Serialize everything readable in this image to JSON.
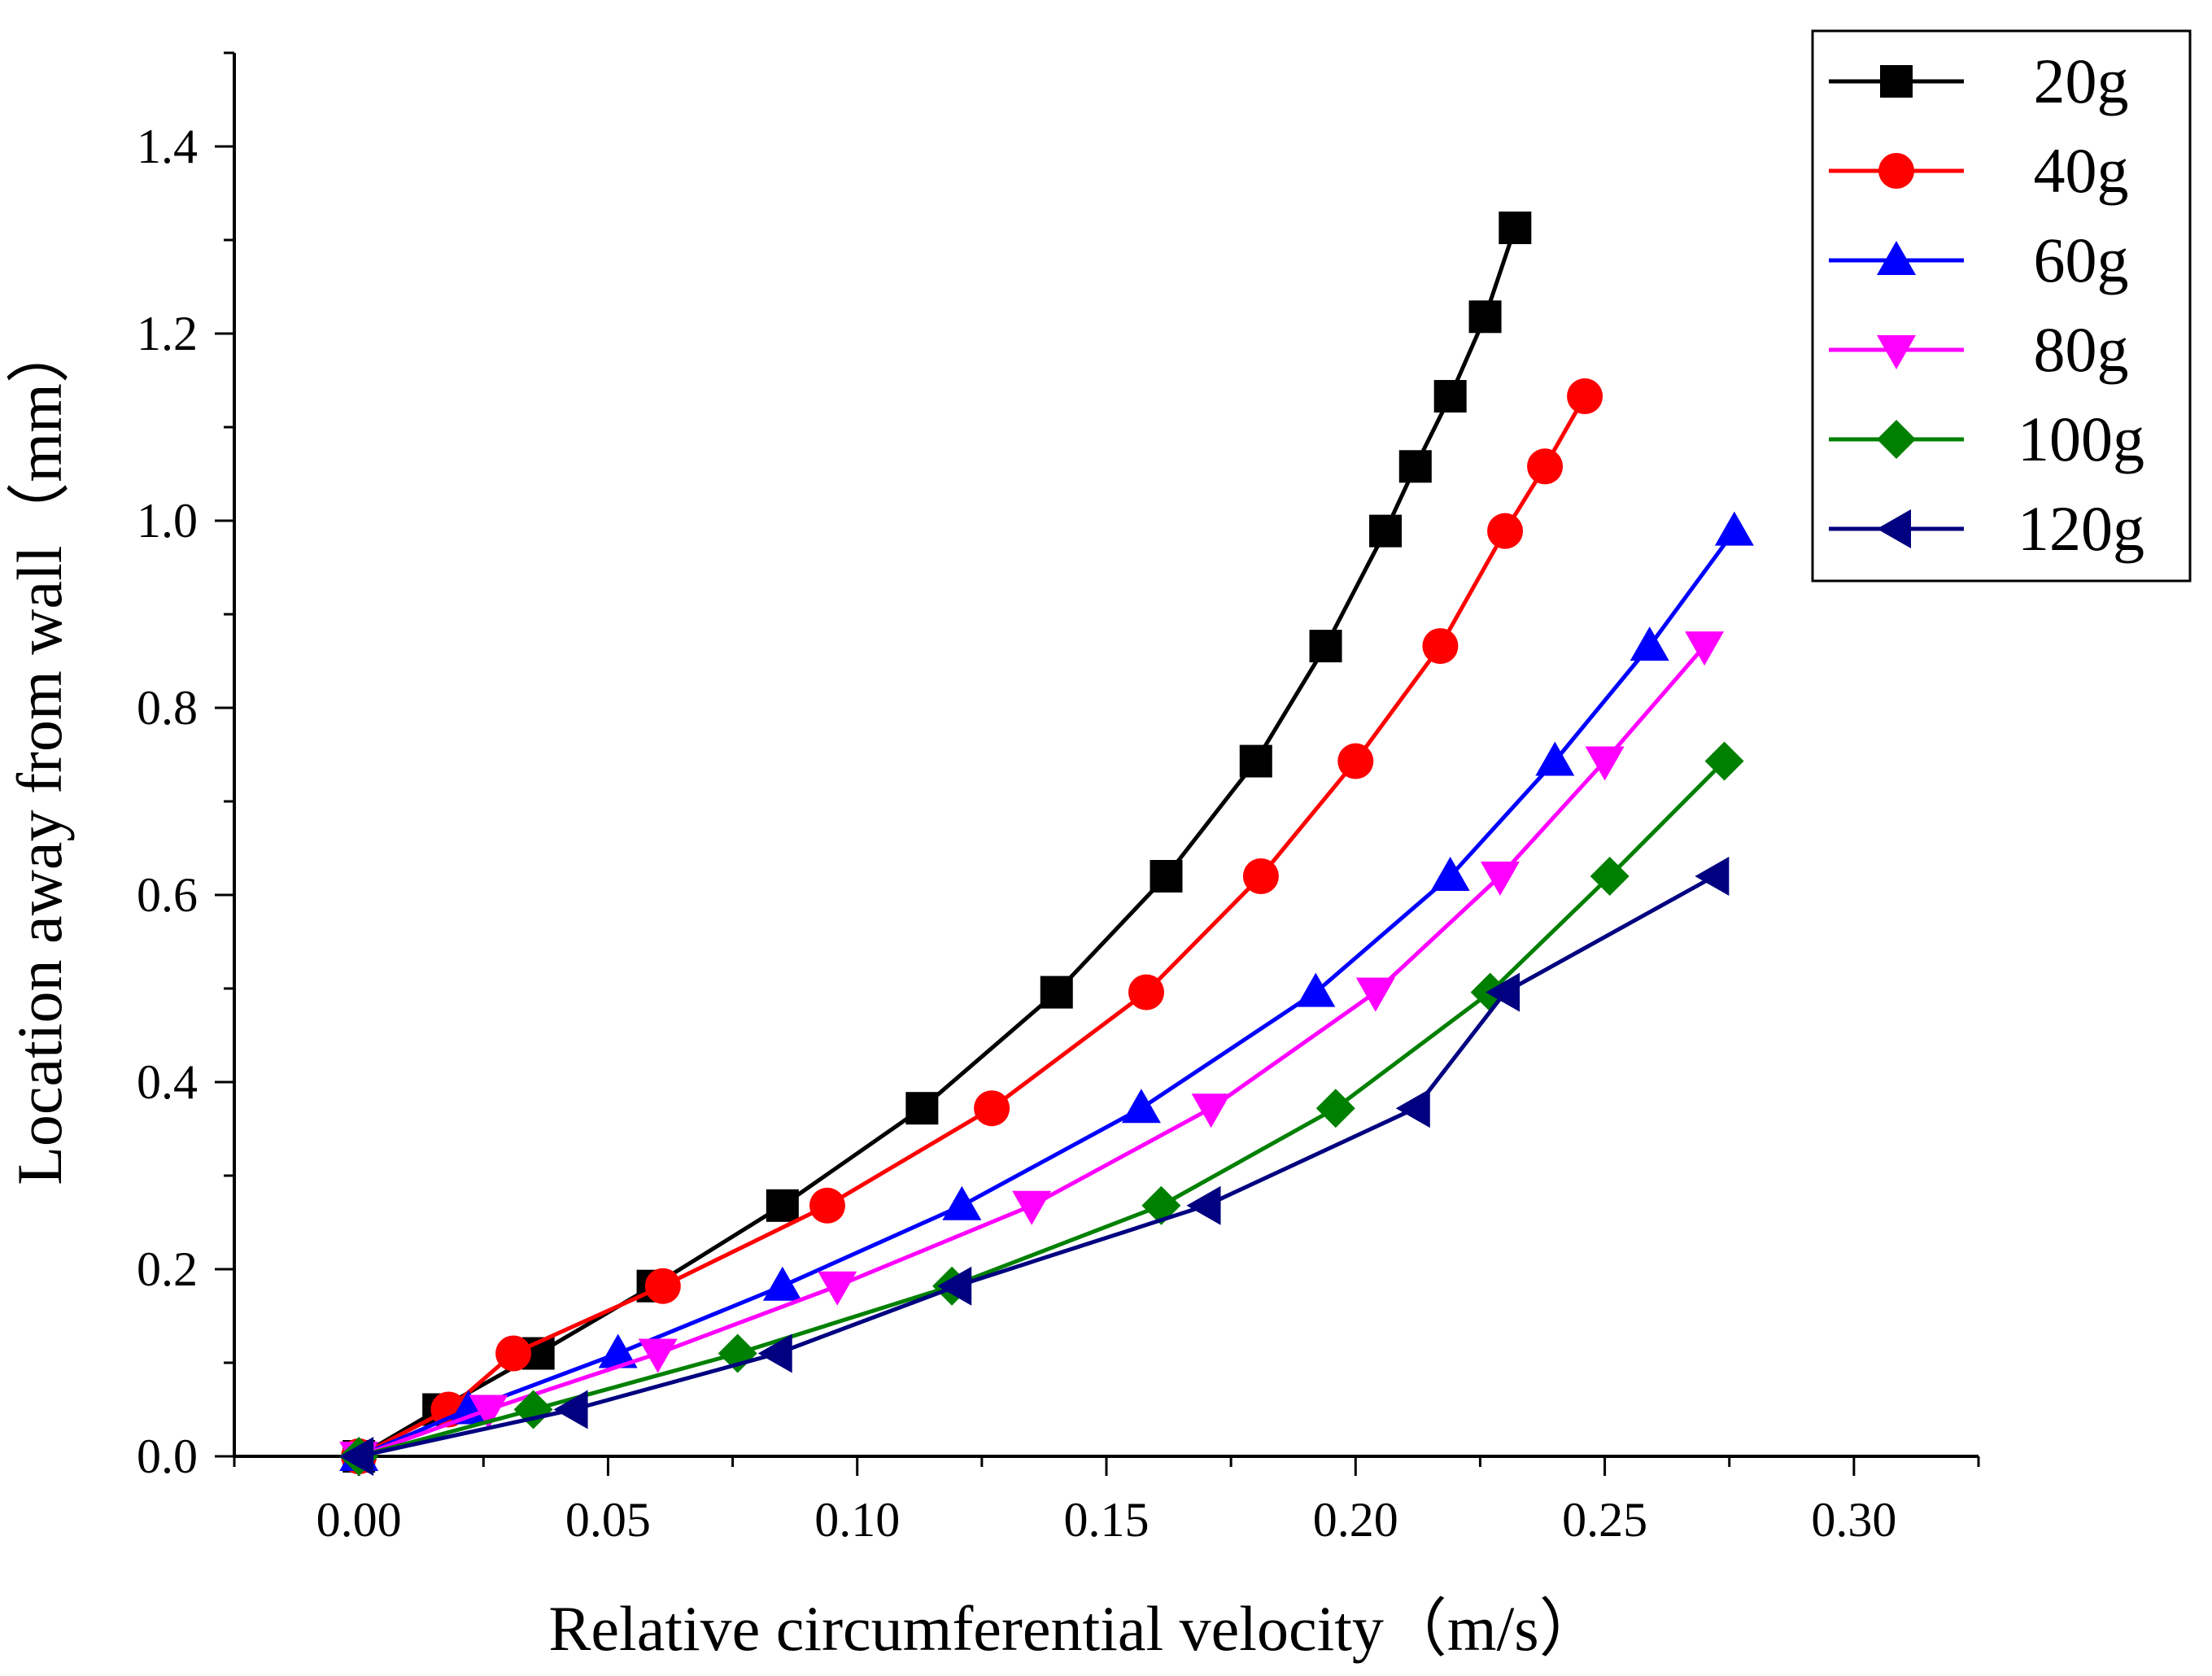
{
  "chart_data": {
    "type": "line",
    "title": "",
    "xlabel": "Relative circumferential velocity（m/s）",
    "ylabel": "Location away from wall（mm）",
    "xlim": [
      -0.025,
      0.325
    ],
    "ylim": [
      0,
      1.5
    ],
    "x_ticks": [
      "0.00",
      "0.05",
      "0.10",
      "0.15",
      "0.20",
      "0.25",
      "0.30"
    ],
    "y_ticks": [
      "0.0",
      "0.2",
      "0.4",
      "0.6",
      "0.8",
      "1.0",
      "1.2",
      "1.4"
    ],
    "grid": false,
    "legend_position": "top-right",
    "series": [
      {
        "name": "20g",
        "color": "#000000",
        "marker": "square",
        "x": [
          0.0,
          0.016,
          0.036,
          0.059,
          0.085,
          0.113,
          0.14,
          0.162,
          0.18,
          0.194,
          0.206,
          0.212,
          0.219,
          0.226,
          0.232
        ],
        "y": [
          0.0,
          0.05,
          0.11,
          0.182,
          0.268,
          0.372,
          0.496,
          0.62,
          0.743,
          0.866,
          0.989,
          1.058,
          1.133,
          1.218,
          1.313
        ]
      },
      {
        "name": "40g",
        "color": "#ff0000",
        "marker": "circle",
        "x": [
          0.0,
          0.018,
          0.031,
          0.061,
          0.094,
          0.127,
          0.158,
          0.181,
          0.2,
          0.217,
          0.23,
          0.238,
          0.246
        ],
        "y": [
          0.0,
          0.05,
          0.11,
          0.182,
          0.268,
          0.372,
          0.496,
          0.62,
          0.743,
          0.866,
          0.989,
          1.058,
          1.133
        ]
      },
      {
        "name": "60g",
        "color": "#0000ff",
        "marker": "triangle-up",
        "x": [
          0.0,
          0.022,
          0.052,
          0.085,
          0.121,
          0.157,
          0.192,
          0.219,
          0.24,
          0.259,
          0.276
        ],
        "y": [
          0.0,
          0.05,
          0.11,
          0.182,
          0.268,
          0.372,
          0.496,
          0.62,
          0.743,
          0.866,
          0.989
        ]
      },
      {
        "name": "80g",
        "color": "#ff00ff",
        "marker": "triangle-down",
        "x": [
          0.0,
          0.026,
          0.06,
          0.096,
          0.135,
          0.171,
          0.204,
          0.229,
          0.25,
          0.27
        ],
        "y": [
          0.0,
          0.05,
          0.11,
          0.182,
          0.268,
          0.372,
          0.496,
          0.62,
          0.743,
          0.866
        ]
      },
      {
        "name": "100g",
        "color": "#008000",
        "marker": "diamond",
        "x": [
          0.0,
          0.035,
          0.076,
          0.119,
          0.161,
          0.196,
          0.227,
          0.251,
          0.274
        ],
        "y": [
          0.0,
          0.05,
          0.11,
          0.182,
          0.268,
          0.372,
          0.496,
          0.62,
          0.743
        ]
      },
      {
        "name": "120g",
        "color": "#000080",
        "marker": "triangle-left",
        "x": [
          0.0,
          0.043,
          0.084,
          0.12,
          0.17,
          0.212,
          0.23,
          0.272
        ],
        "y": [
          0.0,
          0.05,
          0.11,
          0.182,
          0.268,
          0.372,
          0.496,
          0.62
        ]
      }
    ]
  }
}
